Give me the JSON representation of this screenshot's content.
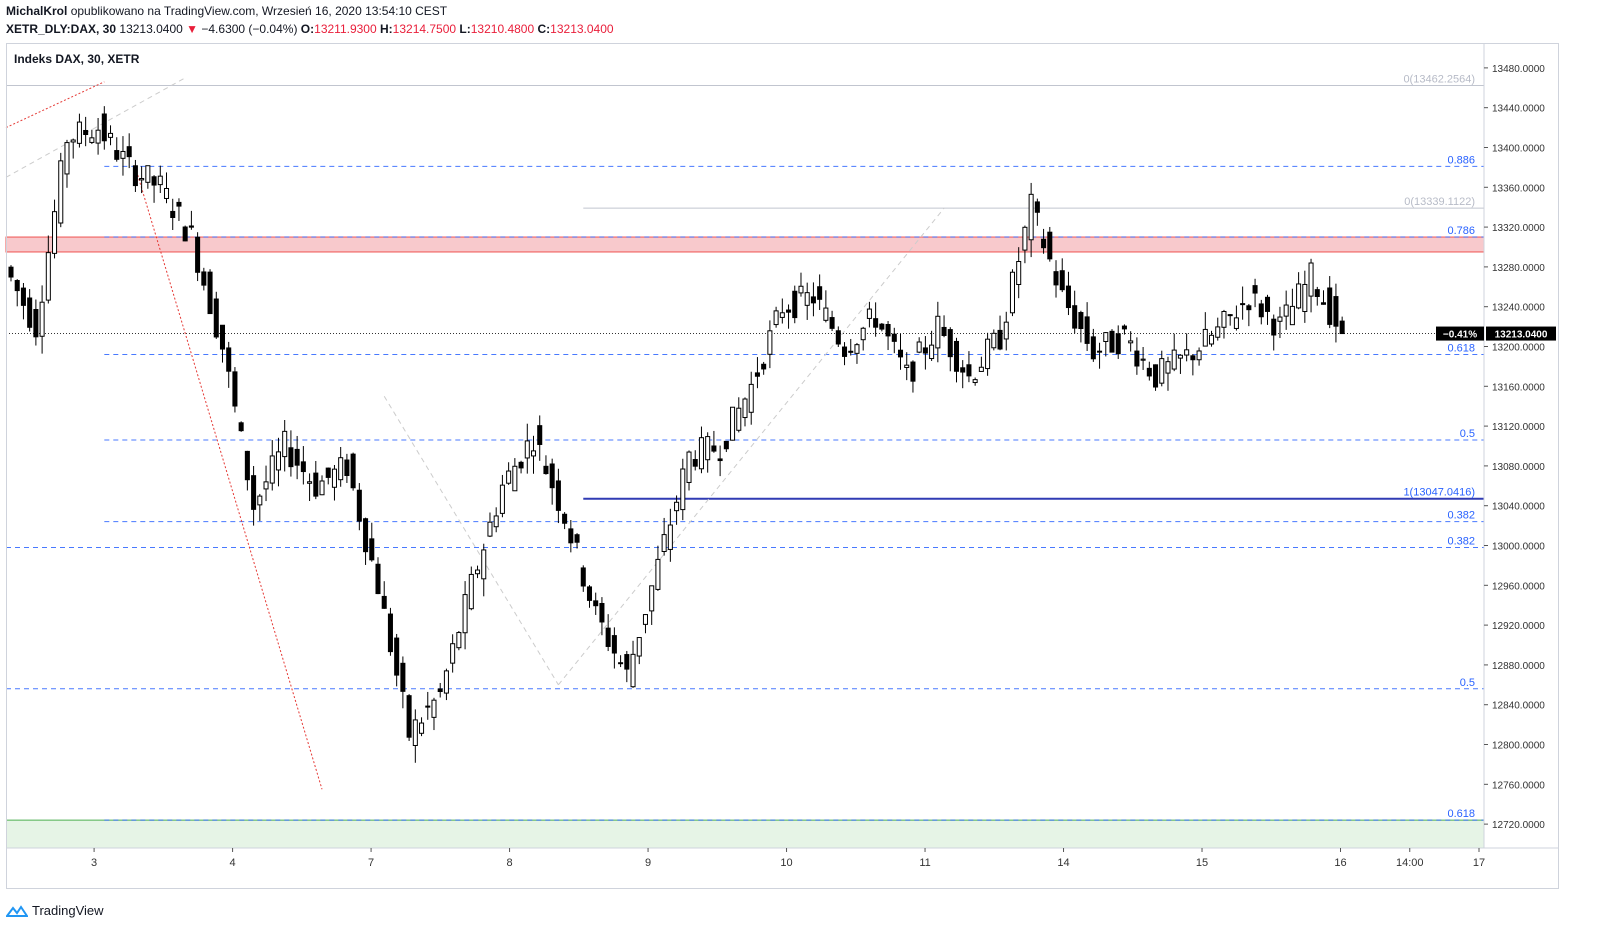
{
  "header": {
    "author": "MichalKrol",
    "published": "opublikowano na TradingView.com, Wrzesień 16, 2020 13:54:10 CEST",
    "symbol": "XETR_DLY:DAX, 30",
    "last": "13213.0400",
    "change": "−4.6300 (−0.04%)",
    "o_label": "O:",
    "o": "13211.9300",
    "h_label": "H:",
    "h": "13214.7500",
    "l_label": "L:",
    "l": "13210.4800",
    "c_label": "C:",
    "c": "13213.0400"
  },
  "footer": {
    "brand": "TradingView"
  },
  "chart_data": {
    "type": "candlestick",
    "title": "Indeks DAX, 30, XETR",
    "ylim": [
      12696,
      13504
    ],
    "yticks": [
      13480,
      13440,
      13400,
      13360,
      13320,
      13280,
      13240,
      13200,
      13160,
      13120,
      13080,
      13040,
      13000,
      12960,
      12920,
      12880,
      12840,
      12800,
      12760,
      12720
    ],
    "ytick_labels": [
      "13480.0000",
      "13440.0000",
      "13400.0000",
      "13360.0000",
      "13320.0000",
      "13280.0000",
      "13240.0000",
      "13200.0000",
      "13160.0000",
      "13120.0000",
      "13080.0000",
      "13040.0000",
      "13000.0000",
      "12960.0000",
      "12920.0000",
      "12880.0000",
      "12840.0000",
      "12800.0000",
      "12760.0000",
      "12720.0000"
    ],
    "xtick_labels": [
      "3",
      "4",
      "7",
      "8",
      "9",
      "10",
      "11",
      "14",
      "15",
      "16",
      "14:00",
      "17"
    ],
    "xtick_index": [
      12,
      32,
      52,
      72,
      92,
      112,
      132,
      152,
      172,
      192,
      202,
      212
    ],
    "last_price": "13213.0400",
    "last_change_pct": "−0.41%",
    "resistance_zone": [
      13295,
      13310
    ],
    "fib_levels": [
      {
        "label": "0(13462.2564)",
        "price": 13462.2564
      },
      {
        "label": "0.886",
        "price": 13381
      },
      {
        "label": "0(13339.1122)",
        "price": 13339.1122
      },
      {
        "label": "0.786",
        "price": 13310
      },
      {
        "label": "0.618",
        "price": 13192
      },
      {
        "label": "0.5",
        "price": 13106
      },
      {
        "label": "1(13047.0416)",
        "price": 13047.0416
      },
      {
        "label": "0.382",
        "price": 13024
      },
      {
        "label": "0.382",
        "price": 12998
      },
      {
        "label": "0.5",
        "price": 12856
      },
      {
        "label": "0.618",
        "price": 12724
      }
    ],
    "anchors": [
      {
        "open": 13320,
        "close": 13280
      },
      {
        "open": 13250,
        "close": 13220
      },
      {
        "open": 13395,
        "close": 13410
      },
      {
        "open": 13430,
        "close": 13420
      },
      {
        "open": 13400,
        "close": 13380
      },
      {
        "open": 13380,
        "close": 13360
      },
      {
        "open": 13360,
        "close": 13310
      },
      {
        "open": 13300,
        "close": 13200
      },
      {
        "open": 13190,
        "close": 13040
      },
      {
        "open": 13040,
        "close": 13100
      },
      {
        "open": 13090,
        "close": 13060
      },
      {
        "open": 13070,
        "close": 13080
      },
      {
        "open": 13050,
        "close": 12960
      },
      {
        "open": 12960,
        "close": 12810
      },
      {
        "open": 12820,
        "close": 12850
      },
      {
        "open": 12840,
        "close": 12960
      },
      {
        "open": 12960,
        "close": 13060
      },
      {
        "open": 13060,
        "close": 13110
      },
      {
        "open": 13110,
        "close": 13030
      },
      {
        "open": 13030,
        "close": 12930
      },
      {
        "open": 12920,
        "close": 12870
      },
      {
        "open": 12870,
        "close": 12980
      },
      {
        "open": 12980,
        "close": 13090
      },
      {
        "open": 13090,
        "close": 13100
      },
      {
        "open": 13100,
        "close": 13160
      },
      {
        "open": 13160,
        "close": 13240
      },
      {
        "open": 13240,
        "close": 13250
      },
      {
        "open": 13250,
        "close": 13200
      },
      {
        "open": 13200,
        "close": 13230
      },
      {
        "open": 13230,
        "close": 13170
      },
      {
        "open": 13170,
        "close": 13220
      },
      {
        "open": 13220,
        "close": 13170
      },
      {
        "open": 13170,
        "close": 13210
      },
      {
        "open": 13210,
        "close": 13340
      },
      {
        "open": 13340,
        "close": 13250
      },
      {
        "open": 13250,
        "close": 13195
      },
      {
        "open": 13200,
        "close": 13210
      },
      {
        "open": 13210,
        "close": 13170
      },
      {
        "open": 13170,
        "close": 13190
      },
      {
        "open": 13190,
        "close": 13215
      },
      {
        "open": 13210,
        "close": 13250
      },
      {
        "open": 13250,
        "close": 13220
      },
      {
        "open": 13225,
        "close": 13270
      },
      {
        "open": 13270,
        "close": 13213
      }
    ]
  }
}
